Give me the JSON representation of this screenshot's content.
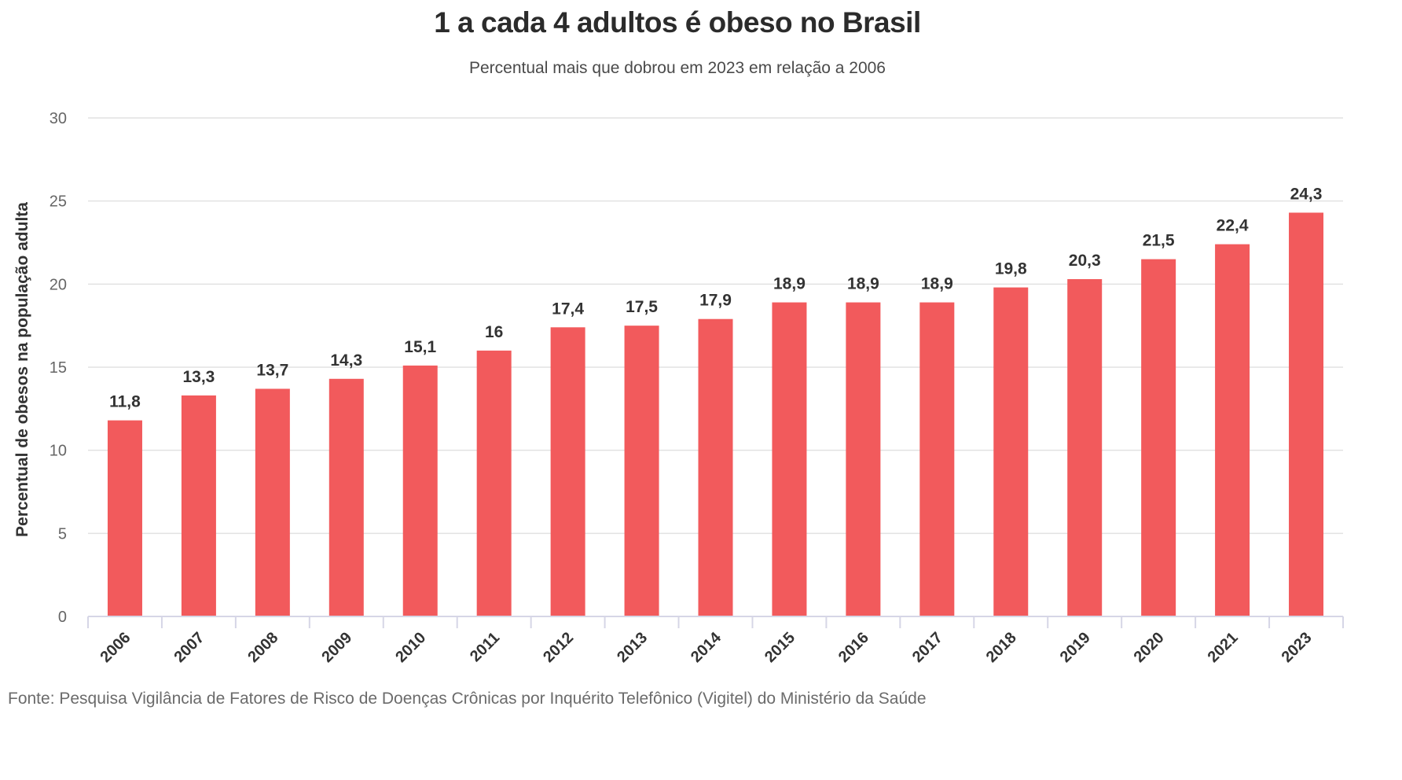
{
  "chart_data": {
    "type": "bar",
    "title": "1 a cada 4 adultos é obeso no Brasil",
    "subtitle": "Percentual mais que dobrou em 2023 em relação a 2006",
    "xlabel": "",
    "ylabel": "Percentual de obesos na população adulta",
    "categories": [
      "2006",
      "2007",
      "2008",
      "2009",
      "2010",
      "2011",
      "2012",
      "2013",
      "2014",
      "2015",
      "2016",
      "2017",
      "2018",
      "2019",
      "2020",
      "2021",
      "2023"
    ],
    "values": [
      11.8,
      13.3,
      13.7,
      14.3,
      15.1,
      16,
      17.4,
      17.5,
      17.9,
      18.9,
      18.9,
      18.9,
      19.8,
      20.3,
      21.5,
      22.4,
      24.3
    ],
    "value_labels": [
      "11,8",
      "13,3",
      "13,7",
      "14,3",
      "15,1",
      "16",
      "17,4",
      "17,5",
      "17,9",
      "18,9",
      "18,9",
      "18,9",
      "19,8",
      "20,3",
      "21,5",
      "22,4",
      "24,3"
    ],
    "ylim": [
      0,
      30
    ],
    "yticks": [
      0,
      5,
      10,
      15,
      20,
      25,
      30
    ],
    "grid": true,
    "legend": "none",
    "bar_color": "#f25a5c",
    "source": "Fonte: Pesquisa Vigilância de Fatores de Risco de Doenças Crônicas por Inquérito Telefônico (Vigitel) do Ministério da Saúde"
  }
}
